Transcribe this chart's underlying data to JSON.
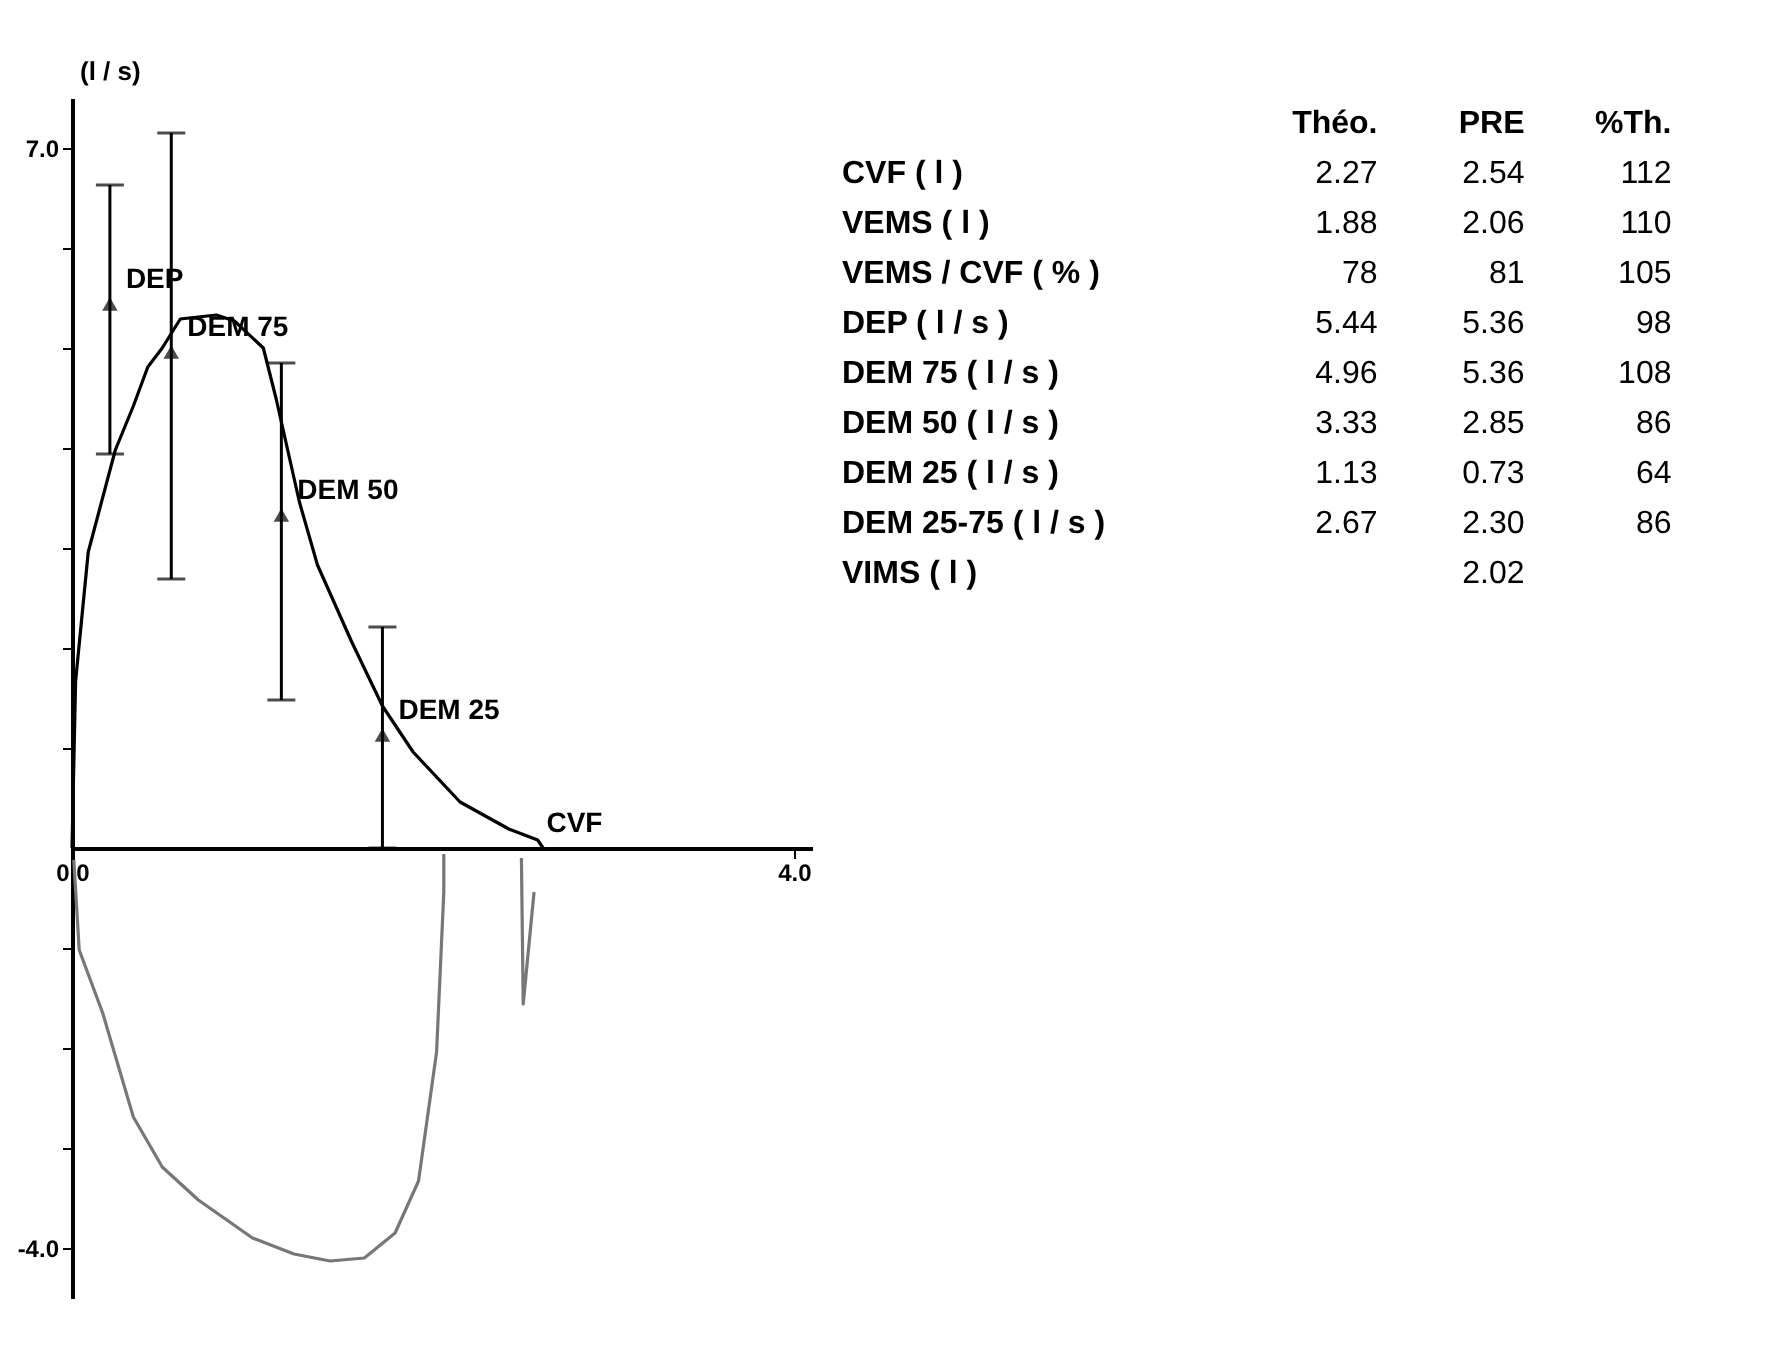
{
  "chart_data": [
    {
      "type": "line",
      "ylabel": "(l / s)",
      "xlim": [
        0,
        4.1
      ],
      "ylim": [
        -4.5,
        7.5
      ],
      "grid": false,
      "xticks": [
        {
          "value": 0,
          "label": "0.0"
        },
        {
          "value": 4,
          "label": "4.0"
        }
      ],
      "yticks": [
        {
          "value": -4,
          "label": "-4.0"
        },
        {
          "value": -3,
          "label": null
        },
        {
          "value": -2,
          "label": null
        },
        {
          "value": -1,
          "label": null
        },
        {
          "value": 1,
          "label": null
        },
        {
          "value": 2,
          "label": null
        },
        {
          "value": 3,
          "label": null
        },
        {
          "value": 4,
          "label": null
        },
        {
          "value": 5,
          "label": null
        },
        {
          "value": 6,
          "label": null
        },
        {
          "value": 7,
          "label": "7.0"
        }
      ],
      "series": [
        {
          "color": "#000000",
          "x": [
            0.0,
            0.02,
            0.09,
            0.24,
            0.34,
            0.42,
            0.5,
            0.6,
            0.8,
            0.9,
            1.06,
            1.13,
            1.26,
            1.36,
            1.55,
            1.72,
            1.89,
            2.15,
            2.42,
            2.58,
            2.61
          ],
          "values": [
            0,
            1.67,
            2.96,
            3.98,
            4.42,
            4.81,
            5.0,
            5.29,
            5.33,
            5.27,
            5.0,
            4.5,
            3.46,
            2.83,
            2.06,
            1.42,
            0.96,
            0.46,
            0.19,
            0.08,
            0
          ]
        },
        {
          "color": "#777777",
          "x": [
            0.01,
            0.04,
            0.17,
            0.34,
            0.5,
            0.7,
            1.0,
            1.23,
            1.43,
            1.62,
            1.79,
            1.92,
            2.02,
            2.06,
            2.06
          ],
          "values": [
            -0.12,
            -1.02,
            -1.65,
            -2.69,
            -3.19,
            -3.52,
            -3.9,
            -4.06,
            -4.13,
            -4.1,
            -3.85,
            -3.33,
            -2.04,
            -0.44,
            -0.06
          ]
        },
        {
          "color": "#777777",
          "x": [
            2.49,
            2.5,
            2.56
          ],
          "values": [
            -0.1,
            -1.56,
            -0.44
          ]
        },
        {
          "type": "scatter",
          "color": "#000000",
          "marker": "triangle",
          "x": [
            0.21,
            0.55,
            1.16,
            1.72
          ],
          "values": [
            5.44,
            4.96,
            3.33,
            1.13
          ],
          "errors": [
            [
              3.94,
              6.63
            ],
            [
              2.69,
              7.15
            ],
            [
              1.48,
              4.85
            ],
            [
              0,
              2.21
            ]
          ]
        }
      ],
      "annotations": [
        {
          "text": "DEP",
          "x": 0.21,
          "y": 5.44
        },
        {
          "text": "DEM 75",
          "x": 0.55,
          "y": 4.96
        },
        {
          "text": "DEM 50",
          "x": 1.16,
          "y": 3.33
        },
        {
          "text": "DEM 25",
          "x": 1.72,
          "y": 1.13
        },
        {
          "text": "CVF",
          "x": 2.54,
          "y": 0
        }
      ]
    },
    {
      "type": "other",
      "categories": [
        "Théo.",
        "PRE",
        "%Th."
      ],
      "y_categories": [
        "CVF ( l )",
        "VEMS ( l )",
        "VEMS / CVF ( % )",
        "DEP ( l / s )",
        "DEM 75 ( l / s )",
        "DEM 50 ( l / s )",
        "DEM 25 ( l / s )",
        "DEM 25-75 ( l / s )",
        "VIMS ( l )"
      ],
      "cell_labels": [
        [
          "2.27",
          "2.54",
          "112"
        ],
        [
          "1.88",
          "2.06",
          "110"
        ],
        [
          "78",
          "81",
          "105"
        ],
        [
          "5.44",
          "5.36",
          "98"
        ],
        [
          "4.96",
          "5.36",
          "108"
        ],
        [
          "3.33",
          "2.85",
          "86"
        ],
        [
          "1.13",
          "0.73",
          "64"
        ],
        [
          "2.67",
          "2.30",
          "86"
        ],
        [
          null,
          "2.02",
          null
        ]
      ]
    }
  ]
}
